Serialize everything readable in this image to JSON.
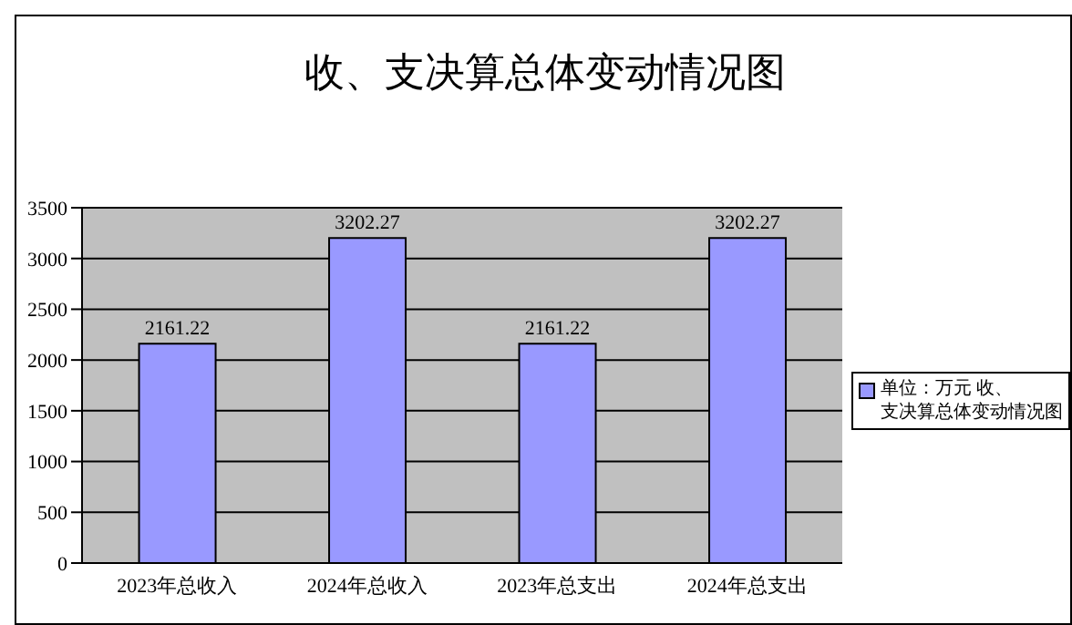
{
  "chart_data": {
    "type": "bar",
    "title": "收、支决算总体变动情况图",
    "categories": [
      "2023年总收入",
      "2024年总收入",
      "2023年总支出",
      "2024年总支出"
    ],
    "series": [
      {
        "name": "单位：万元 收、支决算总体变动情况图",
        "color": "#9999ff",
        "values": [
          2161.22,
          3202.27,
          2161.22,
          3202.27
        ]
      }
    ],
    "ylim": [
      0,
      3500
    ],
    "yticks": [
      0,
      500,
      1000,
      1500,
      2000,
      2500,
      3000,
      3500
    ],
    "grid": "y",
    "legend": "right",
    "data_labels": true
  }
}
